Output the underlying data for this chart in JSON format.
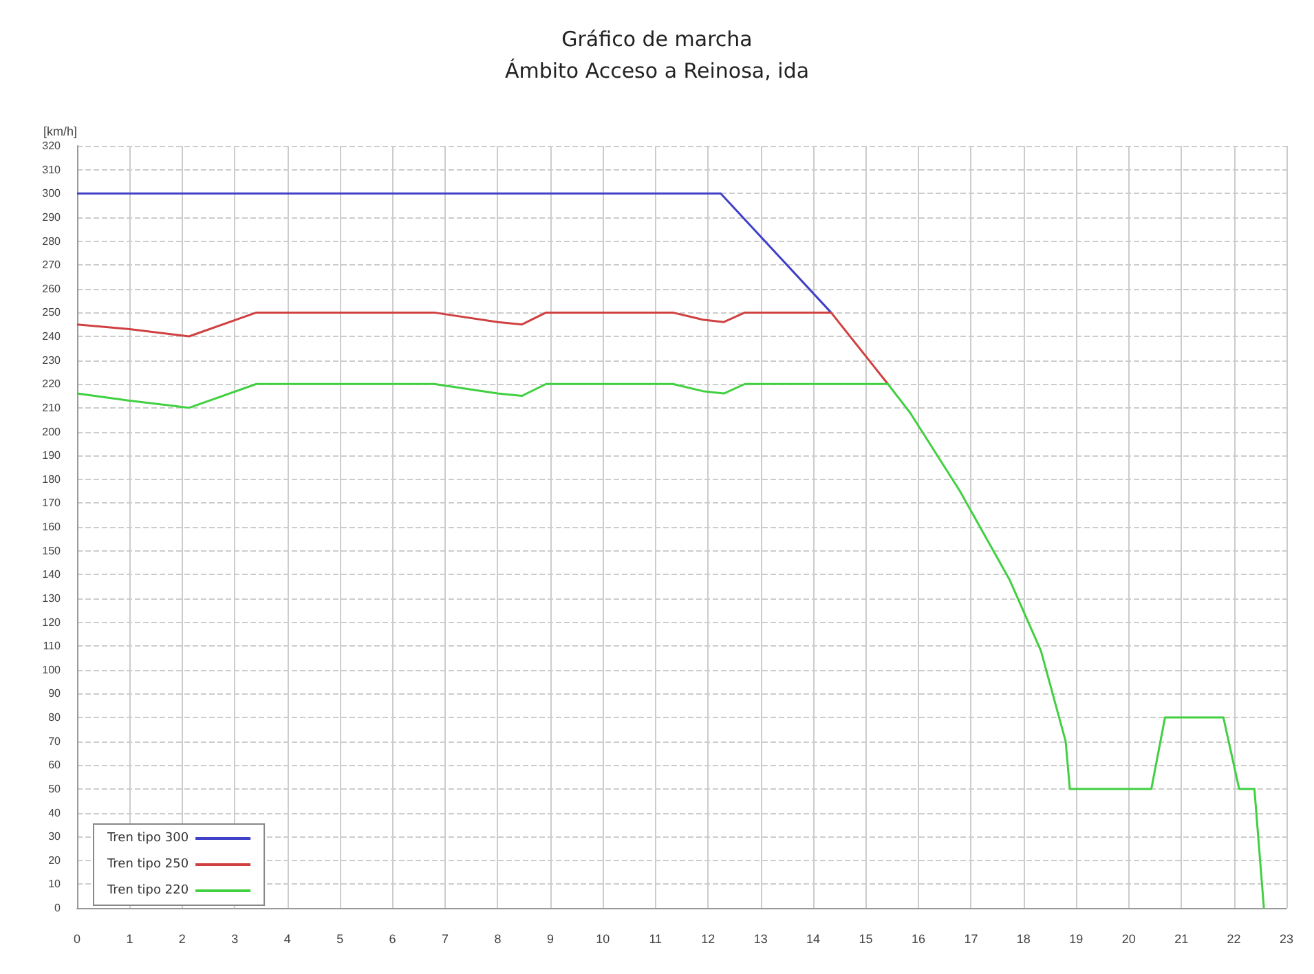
{
  "chart_data": {
    "type": "line",
    "title": "Gráfico de marcha",
    "subtitle": "Ámbito Acceso a Reinosa, ida",
    "ylabel": "[km/h]",
    "xlim": [
      0,
      23
    ],
    "xticks": [
      0,
      1,
      2,
      3,
      4,
      5,
      6,
      7,
      8,
      9,
      10,
      11,
      12,
      13,
      14,
      15,
      16,
      17,
      18,
      19,
      20,
      21,
      22,
      23
    ],
    "ylim": [
      0,
      320
    ],
    "yticks": [
      0,
      10,
      20,
      30,
      40,
      50,
      60,
      70,
      80,
      90,
      100,
      110,
      120,
      130,
      140,
      150,
      160,
      170,
      180,
      190,
      200,
      210,
      220,
      230,
      240,
      250,
      260,
      270,
      280,
      290,
      300,
      310,
      320
    ],
    "grid": true,
    "legend": "bottom left",
    "marker": "none",
    "line_style": "solid",
    "series": [
      {
        "name": "Tren tipo 300",
        "color": "#4040c8",
        "x": [
          0,
          12.24,
          14.34
        ],
        "values": [
          300,
          300,
          250
        ]
      },
      {
        "name": "Tren tipo 250",
        "color": "#d04040",
        "x": [
          0,
          1,
          2.13,
          3.41,
          6.79,
          8.0,
          8.46,
          8.92,
          11.33,
          11.9,
          12.3,
          12.7,
          14.34,
          15.42
        ],
        "values": [
          245,
          243,
          240,
          250,
          250,
          246,
          245,
          250,
          250,
          247,
          246,
          250,
          250,
          220
        ]
      },
      {
        "name": "Tren tipo 220",
        "color": "#40d040",
        "x": [
          0,
          1,
          2.13,
          3.41,
          6.79,
          8.0,
          8.46,
          8.92,
          11.33,
          11.9,
          12.3,
          12.7,
          15.42,
          15.84,
          16.79,
          17.73,
          18.33,
          18.8,
          18.88,
          20.43,
          20.69,
          21.8,
          22.1,
          22.39,
          22.57
        ],
        "values": [
          216,
          213,
          210,
          220,
          220,
          216,
          215,
          220,
          220,
          217,
          216,
          220,
          220,
          208,
          175,
          138,
          108,
          70,
          50,
          50,
          80,
          80,
          50,
          50,
          0
        ]
      }
    ]
  }
}
